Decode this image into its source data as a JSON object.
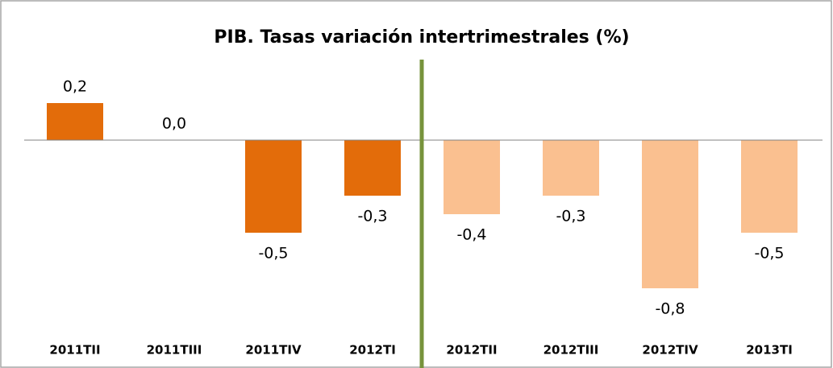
{
  "chart_data": {
    "type": "bar",
    "title": "PIB. Tasas variación intertrimestrales (%)",
    "categories": [
      "2011TII",
      "2011TIII",
      "2011TIV",
      "2012TI",
      "2012TII",
      "2012TIII",
      "2012TIV",
      "2013TI"
    ],
    "values": [
      0.2,
      0.0,
      -0.5,
      -0.3,
      -0.4,
      -0.3,
      -0.8,
      -0.5
    ],
    "value_labels": [
      "0,2",
      "0,0",
      "-0,5",
      "-0,3",
      "-0,4",
      "-0,3",
      "-0,8",
      "-0,5"
    ],
    "colors": [
      "#e36c0a",
      "#e36c0a",
      "#e36c0a",
      "#e36c0a",
      "#fac090",
      "#fac090",
      "#fac090",
      "#fac090"
    ],
    "ylim": [
      -1,
      0.4
    ]
  }
}
